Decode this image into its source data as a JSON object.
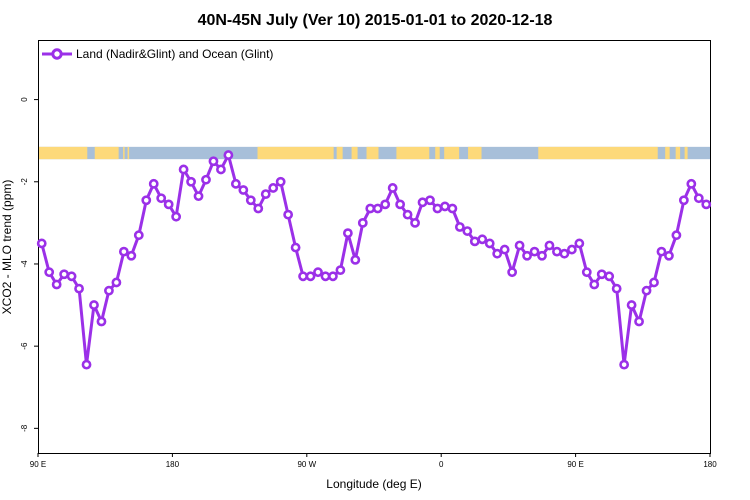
{
  "chart_data": {
    "type": "line",
    "title": "40N-45N July (Ver 10)   2015-01-01 to 2020-12-18",
    "xlabel": "Longitude (deg E)",
    "ylabel": "XCO2 - MLO trend (ppm)",
    "x_tick_positions": [
      90,
      180,
      270,
      360,
      450,
      540
    ],
    "x_tick_labels": [
      "90 E",
      "180",
      "90 W",
      "0",
      "90 E",
      "180"
    ],
    "xlim": [
      90,
      540
    ],
    "y_ticks": [
      0,
      -2,
      -4,
      -6,
      -8
    ],
    "ylim": [
      -8.6,
      1.45
    ],
    "grid": false,
    "legend_position": "top-left",
    "series": [
      {
        "name": "Land (Nadir&Glint) and Ocean (Glint)",
        "color": "#9b30e8",
        "x": [
          92.5,
          97.5,
          102.5,
          107.5,
          112.5,
          117.5,
          122.5,
          127.5,
          132.5,
          137.5,
          142.5,
          147.5,
          152.5,
          157.5,
          162.5,
          167.5,
          172.5,
          177.5,
          182.5,
          187.5,
          192.5,
          197.5,
          202.5,
          207.5,
          212.5,
          217.5,
          222.5,
          227.5,
          232.5,
          237.5,
          242.5,
          247.5,
          252.5,
          257.5,
          262.5,
          267.5,
          272.5,
          277.5,
          282.5,
          287.5,
          292.5,
          297.5,
          302.5,
          307.5,
          312.5,
          317.5,
          322.5,
          327.5,
          332.5,
          337.5,
          342.5,
          347.5,
          352.5,
          357.5,
          362.5,
          367.5,
          372.5,
          377.5,
          382.5,
          387.5,
          392.5,
          397.5,
          402.5,
          407.5,
          412.5,
          417.5,
          422.5,
          427.5,
          432.5,
          437.5,
          442.5,
          447.5,
          452.5,
          457.5,
          462.5,
          467.5,
          472.5,
          477.5,
          482.5,
          487.5,
          492.5,
          497.5,
          502.5,
          507.5,
          512.5,
          517.5,
          522.5,
          527.5,
          532.5,
          537.5
        ],
        "y": [
          -3.5,
          -4.2,
          -4.5,
          -4.25,
          -4.3,
          -4.6,
          -6.45,
          -5.0,
          -5.4,
          -4.65,
          -4.45,
          -3.7,
          -3.8,
          -3.3,
          -2.45,
          -2.05,
          -2.4,
          -2.55,
          -2.85,
          -1.7,
          -2.0,
          -2.35,
          -1.95,
          -1.5,
          -1.7,
          -1.35,
          -2.05,
          -2.2,
          -2.45,
          -2.65,
          -2.3,
          -2.15,
          -2.0,
          -2.8,
          -3.6,
          -4.3,
          -4.3,
          -4.2,
          -4.3,
          -4.3,
          -4.15,
          -3.25,
          -3.9,
          -3.0,
          -2.65,
          -2.65,
          -2.55,
          -2.15,
          -2.55,
          -2.8,
          -3.0,
          -2.5,
          -2.45,
          -2.65,
          -2.6,
          -2.65,
          -3.1,
          -3.2,
          -3.45,
          -3.4,
          -3.5,
          -3.75,
          -3.65,
          -4.2,
          -3.55,
          -3.8,
          -3.7,
          -3.8,
          -3.55,
          -3.7,
          -3.75,
          -3.65,
          -3.5,
          -4.2,
          -4.5,
          -4.25,
          -4.3,
          -4.6,
          -6.45,
          -5.0,
          -5.4,
          -4.65,
          -4.45,
          -3.7,
          -3.8,
          -3.3,
          -2.45,
          -2.05,
          -2.4,
          -2.55
        ]
      }
    ],
    "land_ocean_band": {
      "land_color": "#fdd97a",
      "ocean_color": "#a7bfd9",
      "land_segments": [
        [
          90,
          123
        ],
        [
          128,
          144
        ],
        [
          147,
          148
        ],
        [
          150,
          151
        ],
        [
          237,
          288
        ],
        [
          290,
          294
        ],
        [
          300,
          304
        ],
        [
          310,
          318
        ],
        [
          330,
          352
        ],
        [
          356,
          359
        ],
        [
          362,
          372
        ],
        [
          378,
          387
        ],
        [
          425,
          505
        ],
        [
          510,
          513
        ],
        [
          517,
          520
        ],
        [
          523,
          525
        ]
      ]
    }
  }
}
